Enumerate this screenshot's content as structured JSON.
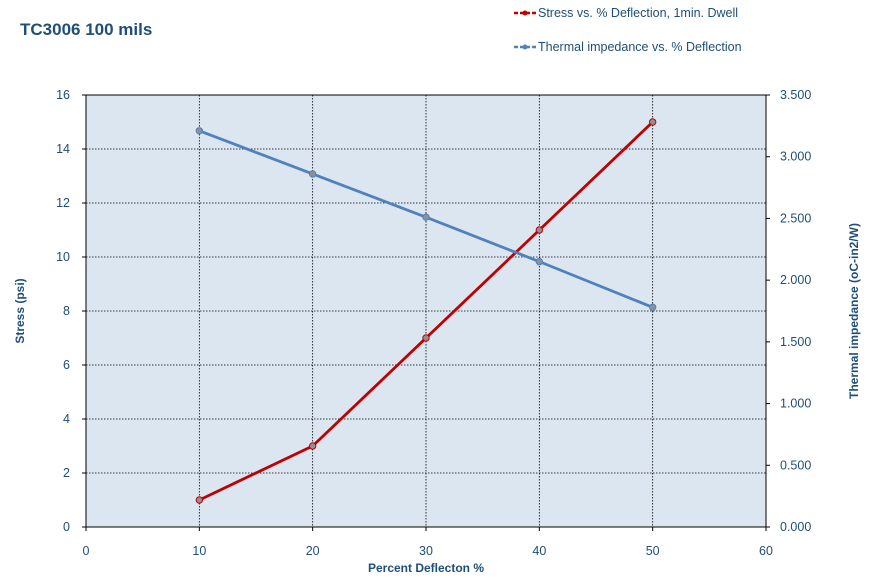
{
  "chart_data": {
    "type": "line",
    "title": "TC3006 100 mils",
    "xlabel": "Percent Deflecton %",
    "ylabel_left": "Stress (psi)",
    "ylabel_right": "Thermal impedance (oC-in2/W)",
    "xlim": [
      0,
      60
    ],
    "ylim_left": [
      0,
      16
    ],
    "ylim_right": [
      0,
      3.5
    ],
    "x_ticks": [
      "0",
      "10",
      "20",
      "30",
      "40",
      "50",
      "60"
    ],
    "y_left_ticks": [
      "0",
      "2",
      "4",
      "6",
      "8",
      "10",
      "12",
      "14",
      "16"
    ],
    "y_right_ticks": [
      "0.000",
      "0.500",
      "1.000",
      "1.500",
      "2.000",
      "2.500",
      "3.000",
      "3.500"
    ],
    "grid": true,
    "legend_position": "top-right",
    "plot_background": "#dce6f1",
    "series": [
      {
        "name": "Stress vs. % Deflection, 1min. Dwell",
        "axis": "left",
        "color": "#c00000",
        "x": [
          10,
          20,
          30,
          40,
          50
        ],
        "y": [
          1,
          3,
          7,
          11,
          15
        ]
      },
      {
        "name": "Thermal impedance vs. % Deflection",
        "axis": "right",
        "color": "#4f81bd",
        "x": [
          10,
          20,
          30,
          40,
          50
        ],
        "y": [
          3.21,
          2.86,
          2.51,
          2.15,
          1.78
        ]
      }
    ]
  }
}
